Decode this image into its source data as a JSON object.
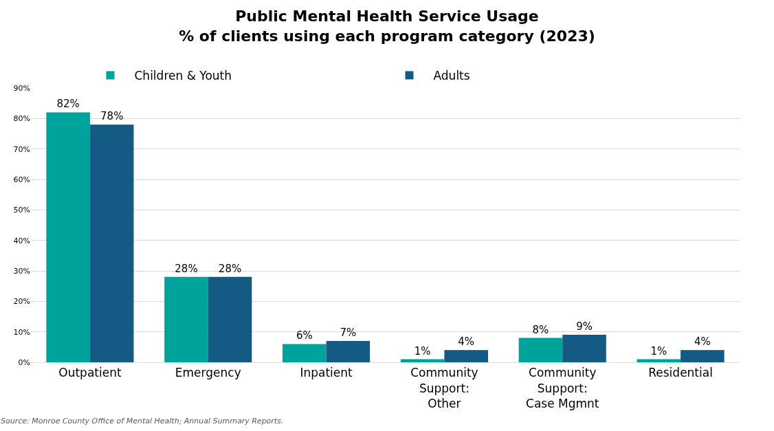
{
  "chart_data": {
    "type": "bar",
    "title": "Public Mental Health Service Usage\n% of clients using each program category (2023)",
    "categories": [
      "Outpatient",
      "Emergency",
      "Inpatient",
      "Community Support: Other",
      "Community Support: Case Mgmnt",
      "Residential"
    ],
    "series": [
      {
        "name": "Children & Youth",
        "color": "#00a39b",
        "values": [
          82,
          28,
          6,
          1,
          8,
          1
        ],
        "value_labels": [
          "82%",
          "28%",
          "6%",
          "1%",
          "8%",
          "1%"
        ]
      },
      {
        "name": "Adults",
        "color": "#135b84",
        "values": [
          78,
          28,
          7,
          4,
          9,
          4
        ],
        "value_labels": [
          "78%",
          "28%",
          "7%",
          "4%",
          "9%",
          "4%"
        ]
      }
    ],
    "ylim": [
      0,
      90
    ],
    "yticks": [
      {
        "value": 0,
        "label": "0%"
      },
      {
        "value": 10,
        "label": "10%"
      },
      {
        "value": 20,
        "label": "20%"
      },
      {
        "value": 30,
        "label": "30%"
      },
      {
        "value": 40,
        "label": "40%"
      },
      {
        "value": 50,
        "label": "50%"
      },
      {
        "value": 60,
        "label": "60%"
      },
      {
        "value": 70,
        "label": "70%"
      },
      {
        "value": 80,
        "label": "80%"
      },
      {
        "value": 90,
        "label": "90%"
      }
    ],
    "grid": "y",
    "legend": "top",
    "annotations": [
      "Source: Monroe County Office of Mental Health; Annual Summary Reports."
    ]
  }
}
